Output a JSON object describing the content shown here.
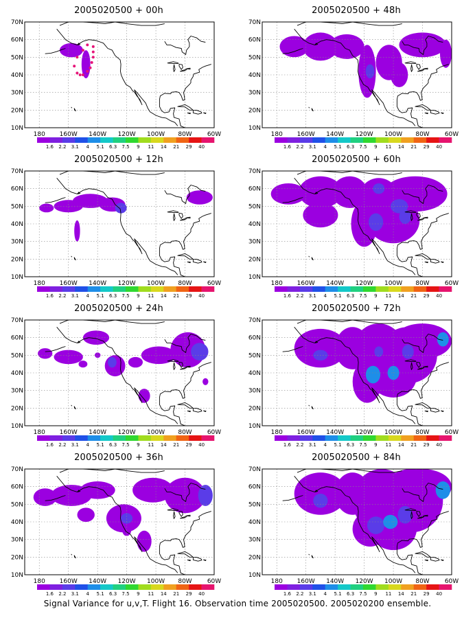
{
  "chart_data": {
    "type": "heatmap",
    "panels": [
      {
        "title": "2005020500 + 00h",
        "blobs": [
          [
            -158,
            54,
            8,
            4,
            1
          ],
          [
            -148,
            46,
            3,
            8,
            1
          ]
        ],
        "dots": [
          [
            -143,
            56
          ],
          [
            -143,
            53
          ],
          [
            -143,
            50
          ],
          [
            -144,
            47
          ],
          [
            -145,
            44
          ],
          [
            -147,
            42
          ],
          [
            -150,
            40
          ],
          [
            -152,
            40
          ],
          [
            -154,
            41
          ],
          [
            -156,
            45
          ],
          [
            -154,
            50
          ],
          [
            -150,
            54
          ],
          [
            -147,
            57
          ]
        ]
      },
      {
        "title": "2005020500 + 48h",
        "blobs": [
          [
            -168,
            56,
            10,
            6,
            1
          ],
          [
            -150,
            56,
            12,
            8,
            1
          ],
          [
            -132,
            56,
            12,
            7,
            1
          ],
          [
            -118,
            42,
            6,
            15,
            1
          ],
          [
            -103,
            47,
            9,
            10,
            1
          ],
          [
            -96,
            40,
            6,
            7,
            1
          ],
          [
            -80,
            57,
            16,
            7,
            1
          ],
          [
            -64,
            52,
            4,
            8,
            1
          ],
          [
            -116,
            42,
            3,
            4,
            2
          ]
        ],
        "dots": []
      },
      {
        "title": "2005020500 + 12h",
        "blobs": [
          [
            -175,
            49,
            5,
            2.5,
            1
          ],
          [
            -160,
            50,
            10,
            3.5,
            1
          ],
          [
            -145,
            53,
            12,
            4,
            1
          ],
          [
            -130,
            51,
            9,
            4,
            1
          ],
          [
            -124,
            49,
            4,
            3,
            2
          ],
          [
            -154,
            36,
            2,
            6,
            1
          ],
          [
            -70,
            55,
            9,
            4,
            1
          ]
        ],
        "dots": []
      },
      {
        "title": "2005020500 + 60h",
        "blobs": [
          [
            -172,
            57,
            12,
            6,
            1
          ],
          [
            -150,
            58,
            15,
            9,
            1
          ],
          [
            -130,
            58,
            12,
            9,
            1
          ],
          [
            -110,
            54,
            14,
            12,
            1
          ],
          [
            -85,
            57,
            22,
            10,
            1
          ],
          [
            -150,
            45,
            12,
            7,
            1
          ],
          [
            -120,
            40,
            9,
            13,
            1
          ],
          [
            -100,
            42,
            18,
            13,
            1
          ],
          [
            -112,
            41,
            5,
            5,
            2
          ],
          [
            -92,
            44,
            4,
            4,
            2
          ],
          [
            -110,
            60,
            4,
            3,
            2
          ],
          [
            -96,
            50,
            6,
            4,
            2
          ]
        ],
        "dots": []
      },
      {
        "title": "2005020500 + 24h",
        "blobs": [
          [
            -176,
            51,
            5,
            3,
            1
          ],
          [
            -160,
            49,
            10,
            4,
            1
          ],
          [
            -141,
            60,
            9,
            4,
            1
          ],
          [
            -150,
            45,
            3,
            2,
            1
          ],
          [
            -140,
            50,
            2,
            1.5,
            1
          ],
          [
            -128,
            44,
            7,
            6,
            1
          ],
          [
            -130,
            46,
            3,
            3,
            2
          ],
          [
            -114,
            46,
            5,
            3,
            1
          ],
          [
            -98,
            50,
            12,
            5,
            1
          ],
          [
            -108,
            27,
            4,
            4,
            1
          ],
          [
            -78,
            53,
            12,
            10,
            1
          ],
          [
            -70,
            52,
            6,
            5,
            2
          ],
          [
            -66,
            35,
            2,
            2,
            1
          ]
        ],
        "dots": []
      },
      {
        "title": "2005020500 + 72h",
        "blobs": [
          [
            -150,
            54,
            18,
            11,
            1
          ],
          [
            -128,
            54,
            12,
            12,
            1
          ],
          [
            -110,
            52,
            18,
            16,
            1
          ],
          [
            -90,
            50,
            20,
            16,
            1
          ],
          [
            -118,
            35,
            10,
            12,
            1
          ],
          [
            -100,
            38,
            16,
            12,
            1
          ],
          [
            -80,
            58,
            20,
            10,
            1
          ],
          [
            -150,
            50,
            5,
            3,
            2
          ],
          [
            -114,
            39,
            5,
            5,
            3
          ],
          [
            -100,
            40,
            4,
            4,
            3
          ],
          [
            -110,
            52,
            3,
            3,
            2
          ],
          [
            -90,
            52,
            4,
            4,
            2
          ],
          [
            -66,
            59,
            4,
            4,
            3
          ]
        ],
        "dots": []
      },
      {
        "title": "2005020500 + 36h",
        "blobs": [
          [
            -176,
            54,
            8,
            5,
            1
          ],
          [
            -158,
            55,
            14,
            6,
            1
          ],
          [
            -140,
            58,
            12,
            5,
            1
          ],
          [
            -148,
            44,
            6,
            4,
            1
          ],
          [
            -122,
            42,
            12,
            8,
            1
          ],
          [
            -120,
            42,
            4,
            3,
            2
          ],
          [
            -108,
            29,
            5,
            6,
            1
          ],
          [
            -120,
            35,
            3,
            3,
            1
          ],
          [
            -102,
            58,
            14,
            7,
            1
          ],
          [
            -80,
            55,
            14,
            10,
            1
          ],
          [
            -66,
            55,
            5,
            6,
            2
          ]
        ],
        "dots": []
      },
      {
        "title": "2005020500 + 84h",
        "blobs": [
          [
            -150,
            56,
            18,
            12,
            1
          ],
          [
            -128,
            56,
            12,
            12,
            1
          ],
          [
            -108,
            52,
            20,
            18,
            1
          ],
          [
            -88,
            52,
            22,
            18,
            1
          ],
          [
            -116,
            36,
            12,
            10,
            1
          ],
          [
            -100,
            36,
            16,
            12,
            1
          ],
          [
            -80,
            60,
            20,
            10,
            1
          ],
          [
            -150,
            52,
            5,
            4,
            2
          ],
          [
            -112,
            38,
            6,
            5,
            2
          ],
          [
            -102,
            40,
            5,
            4,
            3
          ],
          [
            -92,
            44,
            5,
            5,
            2
          ],
          [
            -66,
            58,
            5,
            5,
            3
          ]
        ],
        "dots": []
      }
    ],
    "xaxis": {
      "ticks": [
        -180,
        -160,
        -140,
        -120,
        -100,
        -80,
        -60
      ],
      "labels": [
        "180",
        "160W",
        "140W",
        "120W",
        "100W",
        "80W",
        "60W"
      ],
      "range": [
        -190,
        -60
      ]
    },
    "yaxis": {
      "ticks": [
        10,
        20,
        30,
        40,
        50,
        60,
        70
      ],
      "labels": [
        "10N",
        "20N",
        "30N",
        "40N",
        "50N",
        "60N",
        "70N"
      ],
      "range": [
        10,
        70
      ]
    },
    "colorbar": {
      "labels": [
        "1.6",
        "2.2",
        "3.1",
        "4",
        "5.1",
        "6.3",
        "7.5",
        "9",
        "11",
        "14",
        "21",
        "29",
        "40"
      ],
      "colors": [
        "#9b00e0",
        "#7f20e0",
        "#5a3ce8",
        "#2050e8",
        "#1e8ee8",
        "#14c8c8",
        "#20d080",
        "#30d830",
        "#a0dc1e",
        "#d8d81e",
        "#f0a020",
        "#f06414",
        "#e61414",
        "#e6146e"
      ]
    },
    "grid": true,
    "level_colors": [
      "#9b00e0",
      "#5a3ce8",
      "#1e8ee8"
    ],
    "dot_color": "#e61478",
    "grid_color": "#888888"
  },
  "footer": "Signal Variance for u,v,T. Flight 16. Observation time 2005020500. 2005020200 ensemble."
}
